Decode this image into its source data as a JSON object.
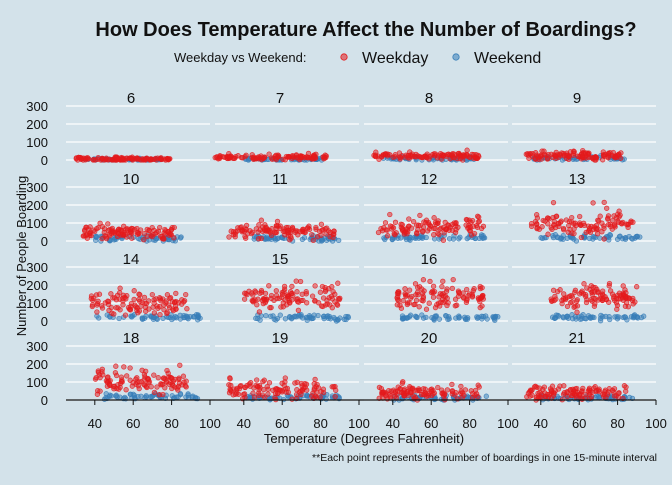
{
  "chart_data": {
    "type": "scatter",
    "title": "How Does Temperature Affect the Number of Boardings?",
    "legend_title": "Weekday vs Weekend:",
    "legend_position": "top",
    "series": [
      {
        "name": "Weekday",
        "color": "#e41a1c"
      },
      {
        "name": "Weekend",
        "color": "#377eb8"
      }
    ],
    "xlabel": "Temperature (Degrees Fahrenheit)",
    "ylabel": "Number of People Boarding",
    "caption": "**Each point represents the number of boardings in one 15-minute interval",
    "xlim": [
      25,
      100
    ],
    "ylim": [
      0,
      300
    ],
    "xticks": [
      40,
      60,
      80,
      100
    ],
    "yticks": [
      0,
      100,
      200,
      300
    ],
    "ytick_labels": [
      "0",
      "100",
      "200",
      "300"
    ],
    "facet_by": "hour",
    "facets": [
      {
        "label": "6",
        "weekday": {
          "x_range": [
            30,
            80
          ],
          "y_center": 5,
          "y_spread": 5,
          "y_max": 20
        },
        "weekend": {
          "x_range": [
            35,
            75
          ],
          "y_center": 3,
          "y_spread": 3,
          "y_max": 10
        }
      },
      {
        "label": "7",
        "weekday": {
          "x_range": [
            25,
            83
          ],
          "y_center": 15,
          "y_spread": 8,
          "y_max": 40
        },
        "weekend": {
          "x_range": [
            40,
            82
          ],
          "y_center": 5,
          "y_spread": 4,
          "y_max": 15
        }
      },
      {
        "label": "8",
        "weekday": {
          "x_range": [
            30,
            85
          ],
          "y_center": 20,
          "y_spread": 10,
          "y_max": 60
        },
        "weekend": {
          "x_range": [
            35,
            83
          ],
          "y_center": 8,
          "y_spread": 5,
          "y_max": 20
        }
      },
      {
        "label": "9",
        "weekday": {
          "x_range": [
            32,
            82
          ],
          "y_center": 25,
          "y_spread": 12,
          "y_max": 60
        },
        "weekend": {
          "x_range": [
            35,
            85
          ],
          "y_center": 10,
          "y_spread": 6,
          "y_max": 25
        }
      },
      {
        "label": "10",
        "weekday": {
          "x_range": [
            33,
            82
          ],
          "y_center": 45,
          "y_spread": 20,
          "y_max": 100
        },
        "weekend": {
          "x_range": [
            40,
            85
          ],
          "y_center": 15,
          "y_spread": 8,
          "y_max": 30
        }
      },
      {
        "label": "11",
        "weekday": {
          "x_range": [
            32,
            88
          ],
          "y_center": 55,
          "y_spread": 20,
          "y_max": 120
        },
        "weekend": {
          "x_range": [
            45,
            90
          ],
          "y_center": 15,
          "y_spread": 8,
          "y_max": 30
        }
      },
      {
        "label": "12",
        "weekday": {
          "x_range": [
            32,
            88
          ],
          "y_center": 80,
          "y_spread": 25,
          "y_max": 150
        },
        "weekend": {
          "x_range": [
            35,
            90
          ],
          "y_center": 20,
          "y_spread": 8,
          "y_max": 35
        }
      },
      {
        "label": "13",
        "weekday": {
          "x_range": [
            35,
            88
          ],
          "y_center": 90,
          "y_spread": 30,
          "y_max": 220
        },
        "weekend": {
          "x_range": [
            40,
            92
          ],
          "y_center": 20,
          "y_spread": 8,
          "y_max": 35
        }
      },
      {
        "label": "14",
        "weekday": {
          "x_range": [
            38,
            88
          ],
          "y_center": 100,
          "y_spread": 30,
          "y_max": 220
        },
        "weekend": {
          "x_range": [
            40,
            95
          ],
          "y_center": 20,
          "y_spread": 8,
          "y_max": 35
        }
      },
      {
        "label": "15",
        "weekday": {
          "x_range": [
            40,
            90
          ],
          "y_center": 130,
          "y_spread": 35,
          "y_max": 230
        },
        "weekend": {
          "x_range": [
            45,
            95
          ],
          "y_center": 20,
          "y_spread": 8,
          "y_max": 35
        }
      },
      {
        "label": "16",
        "weekday": {
          "x_range": [
            42,
            88
          ],
          "y_center": 135,
          "y_spread": 35,
          "y_max": 230
        },
        "weekend": {
          "x_range": [
            45,
            95
          ],
          "y_center": 20,
          "y_spread": 8,
          "y_max": 35
        }
      },
      {
        "label": "17",
        "weekday": {
          "x_range": [
            45,
            90
          ],
          "y_center": 135,
          "y_spread": 35,
          "y_max": 220
        },
        "weekend": {
          "x_range": [
            45,
            95
          ],
          "y_center": 20,
          "y_spread": 8,
          "y_max": 35
        }
      },
      {
        "label": "18",
        "weekday": {
          "x_range": [
            40,
            88
          ],
          "y_center": 95,
          "y_spread": 30,
          "y_max": 210
        },
        "weekend": {
          "x_range": [
            45,
            95
          ],
          "y_center": 20,
          "y_spread": 8,
          "y_max": 35
        }
      },
      {
        "label": "19",
        "weekday": {
          "x_range": [
            32,
            88
          ],
          "y_center": 55,
          "y_spread": 25,
          "y_max": 130
        },
        "weekend": {
          "x_range": [
            40,
            90
          ],
          "y_center": 15,
          "y_spread": 7,
          "y_max": 30
        }
      },
      {
        "label": "20",
        "weekday": {
          "x_range": [
            32,
            85
          ],
          "y_center": 40,
          "y_spread": 20,
          "y_max": 110
        },
        "weekend": {
          "x_range": [
            40,
            90
          ],
          "y_center": 12,
          "y_spread": 6,
          "y_max": 25
        }
      },
      {
        "label": "21",
        "weekday": {
          "x_range": [
            32,
            85
          ],
          "y_center": 40,
          "y_spread": 18,
          "y_max": 100
        },
        "weekend": {
          "x_range": [
            40,
            88
          ],
          "y_center": 12,
          "y_spread": 6,
          "y_max": 25
        }
      }
    ]
  }
}
